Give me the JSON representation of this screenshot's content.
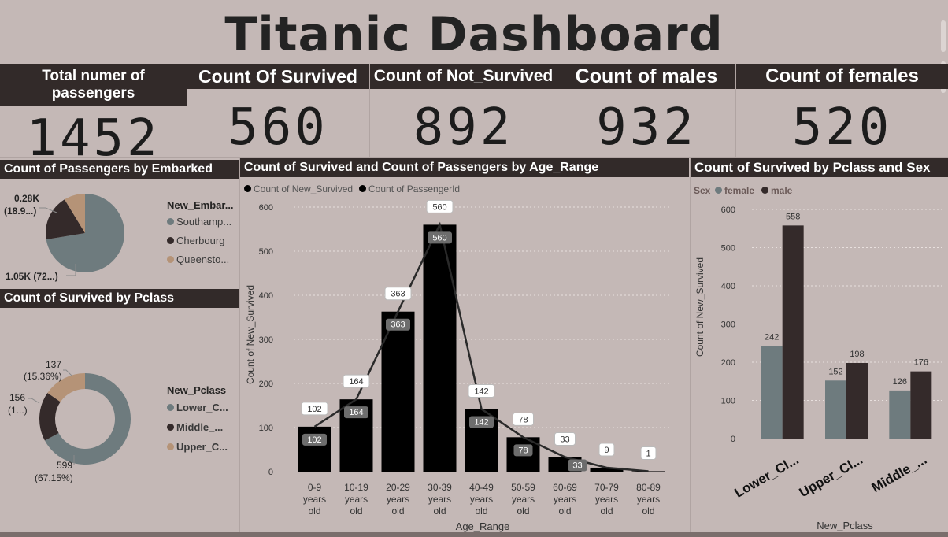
{
  "title": "Titanic Dashboard",
  "cards": [
    {
      "label": "Total numer of passengers",
      "value": "1452"
    },
    {
      "label": "Count Of Survived",
      "value": "560"
    },
    {
      "label": "Count of Not_Survived",
      "value": "892"
    },
    {
      "label": "Count of males",
      "value": "932"
    },
    {
      "label": "Count of females",
      "value": "520"
    }
  ],
  "colors": {
    "slate": "#6e7b7e",
    "dark": "#342a2a",
    "tan": "#b59377",
    "black": "#000000",
    "header": "#322a29",
    "background": "#c4b8b6"
  },
  "embarked": {
    "title": "Count of Passengers by Embarked",
    "legend_title": "New_Embar...",
    "legend": [
      "Southamp...",
      "Cherbourg",
      "Queensto..."
    ],
    "label_top": "0.28K",
    "label_top_pct": "(18.9...)",
    "label_bottom": "1.05K (72...)"
  },
  "pclass_donut": {
    "title": "Count of Survived by Pclass",
    "legend_title": "New_Pclass",
    "legend": [
      "Lower_C...",
      "Middle_...",
      "Upper_C..."
    ],
    "labels": [
      {
        "value": "137",
        "pct": "(15.36%)"
      },
      {
        "value": "156",
        "pct": "(1...)"
      },
      {
        "value": "599",
        "pct": "(67.15%)"
      }
    ]
  },
  "age_chart": {
    "title": "Count of Survived and Count of Passengers by Age_Range",
    "legend": [
      "Count of New_Survived",
      "Count of PassengerId"
    ],
    "ylabel": "Count of New_Survived",
    "xlabel": "Age_Range",
    "yticks": [
      "0",
      "100",
      "200",
      "300",
      "400",
      "500",
      "600"
    ]
  },
  "sex_chart": {
    "title": "Count of Survived by Pclass and Sex",
    "legend_title": "Sex",
    "legend": [
      "female",
      "male"
    ],
    "ylabel": "Count of New_Survived",
    "xlabel": "New_Pclass",
    "yticks": [
      "0",
      "100",
      "200",
      "300",
      "400",
      "500",
      "600"
    ]
  },
  "chart_data": [
    {
      "type": "pie",
      "title": "Count of Passengers by Embarked",
      "categories": [
        "Southamp...",
        "Cherbourg",
        "Queensto..."
      ],
      "values_pct": [
        72.4,
        18.9,
        8.7
      ],
      "colors": [
        "#6e7b7e",
        "#342a2a",
        "#b59377"
      ]
    },
    {
      "type": "pie",
      "title": "Count of Survived by Pclass",
      "categories": [
        "Lower_C...",
        "Middle_...",
        "Upper_C..."
      ],
      "values": [
        599,
        156,
        137
      ],
      "colors": [
        "#6e7b7e",
        "#342a2a",
        "#b59377"
      ]
    },
    {
      "type": "bar",
      "title": "Count of Survived and Count of Passengers by Age_Range",
      "categories": [
        "0-9 years old",
        "10-19 years old",
        "20-29 years old",
        "30-39 years old",
        "40-49 years old",
        "50-59 years old",
        "60-69 years old",
        "70-79 years old",
        "80-89 years old"
      ],
      "series": [
        {
          "name": "Count of New_Survived",
          "values": [
            102,
            164,
            363,
            560,
            142,
            78,
            33,
            9,
            1
          ]
        },
        {
          "name": "Count of PassengerId",
          "values": [
            102,
            164,
            363,
            560,
            142,
            78,
            33,
            9,
            1
          ]
        }
      ],
      "bar_labels": [
        "102",
        "164",
        "363",
        "560",
        "142",
        "78",
        "33",
        "",
        ""
      ],
      "line_labels": [
        "102",
        "164",
        "363",
        "560",
        "142",
        "78",
        "33",
        "9",
        "1"
      ],
      "ylim": [
        0,
        600
      ],
      "ylabel": "Count of New_Survived",
      "xlabel": "Age_Range"
    },
    {
      "type": "bar",
      "title": "Count of Survived by Pclass and Sex",
      "categories": [
        "Lower_Cl...",
        "Upper_Cl...",
        "Middle_..."
      ],
      "series": [
        {
          "name": "female",
          "values": [
            242,
            152,
            126
          ]
        },
        {
          "name": "male",
          "values": [
            558,
            198,
            176
          ]
        }
      ],
      "ylim": [
        0,
        600
      ],
      "ylabel": "Count of New_Survived",
      "xlabel": "New_Pclass"
    }
  ]
}
